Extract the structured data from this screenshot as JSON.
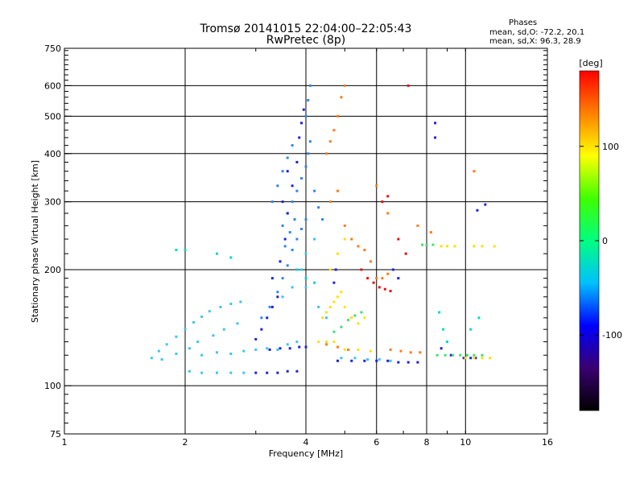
{
  "chart_data": {
    "type": "scatter",
    "title": "Tromsø 20141015 22:04:00–22:05:43",
    "subtitle": "RwPretec (8p)",
    "phase_info": {
      "heading": "Phases",
      "line1": "mean, sd,O: -72.2, 20.1",
      "line2": "mean, sd,X:  96.3, 28.9"
    },
    "xlabel": "Frequency [MHz]",
    "ylabel": "Stationary phase Virtual Height [km]",
    "x_scale": "log",
    "y_scale": "log",
    "xlim": [
      1,
      16
    ],
    "ylim": [
      75,
      750
    ],
    "x_ticks": [
      1,
      2,
      4,
      6,
      8,
      10,
      16
    ],
    "x_tick_labels": [
      "1",
      "2",
      "4",
      "6",
      "8",
      "10",
      "16"
    ],
    "y_ticks": [
      75,
      100,
      200,
      300,
      400,
      500,
      600,
      750
    ],
    "y_tick_labels": [
      "75",
      "100",
      "200",
      "300",
      "400",
      "500",
      "600",
      "750"
    ],
    "x_gridlines": [
      2,
      4,
      6,
      8,
      10
    ],
    "y_gridlines": [
      100,
      200,
      300,
      400,
      500,
      600
    ],
    "grid": true,
    "colorbar": {
      "label": "[deg]",
      "range": [
        -180,
        180
      ],
      "ticks": [
        100,
        0,
        -100
      ],
      "tick_labels": [
        "100",
        "0",
        "-100"
      ],
      "colormap": [
        "#000000",
        "#3a0070",
        "#0000ff",
        "#00c0ff",
        "#00ff80",
        "#40ff00",
        "#ffff00",
        "#ff8000",
        "#ff0000"
      ]
    },
    "series": [
      {
        "color": "#3fc4ee",
        "points": [
          [
            1.65,
            118
          ],
          [
            1.72,
            123
          ],
          [
            1.8,
            128
          ],
          [
            1.9,
            134
          ],
          [
            2.0,
            140
          ],
          [
            2.1,
            146
          ],
          [
            2.2,
            151
          ],
          [
            2.3,
            156
          ],
          [
            2.45,
            160
          ],
          [
            2.6,
            163
          ],
          [
            2.75,
            165
          ],
          [
            2.2,
            120
          ],
          [
            2.4,
            122
          ],
          [
            2.6,
            121
          ],
          [
            2.8,
            123
          ],
          [
            1.75,
            117
          ],
          [
            1.9,
            121
          ],
          [
            2.05,
            125
          ],
          [
            2.15,
            130
          ],
          [
            2.35,
            135
          ],
          [
            2.5,
            140
          ],
          [
            2.7,
            145
          ],
          [
            3.0,
            124
          ],
          [
            3.2,
            125
          ],
          [
            3.4,
            124
          ],
          [
            3.6,
            128
          ],
          [
            3.8,
            130
          ],
          [
            2.05,
            109
          ],
          [
            2.2,
            108
          ],
          [
            2.4,
            108
          ],
          [
            2.6,
            108
          ],
          [
            2.8,
            108
          ],
          [
            3.5,
            170
          ],
          [
            3.7,
            180
          ],
          [
            3.9,
            200
          ],
          [
            4.0,
            220
          ],
          [
            4.2,
            240
          ],
          [
            4.0,
            180
          ],
          [
            4.3,
            160
          ],
          [
            4.5,
            150
          ],
          [
            4.9,
            118
          ],
          [
            5.3,
            118
          ],
          [
            5.7,
            117
          ],
          [
            6.1,
            117
          ],
          [
            6.5,
            116
          ]
        ]
      },
      {
        "color": "#2f86ec",
        "points": [
          [
            3.1,
            150
          ],
          [
            3.25,
            160
          ],
          [
            3.4,
            175
          ],
          [
            3.5,
            190
          ],
          [
            3.6,
            205
          ],
          [
            3.7,
            225
          ],
          [
            3.8,
            240
          ],
          [
            3.9,
            255
          ],
          [
            4.0,
            270
          ],
          [
            3.5,
            260
          ],
          [
            3.6,
            280
          ],
          [
            3.7,
            300
          ],
          [
            3.8,
            320
          ],
          [
            3.9,
            345
          ],
          [
            4.0,
            370
          ],
          [
            4.05,
            400
          ],
          [
            4.1,
            430
          ],
          [
            3.3,
            300
          ],
          [
            3.4,
            330
          ],
          [
            3.5,
            360
          ],
          [
            3.6,
            390
          ],
          [
            3.7,
            420
          ],
          [
            3.55,
            230
          ],
          [
            3.65,
            250
          ],
          [
            3.75,
            270
          ],
          [
            4.0,
            500
          ],
          [
            4.05,
            550
          ],
          [
            4.1,
            600
          ],
          [
            4.2,
            320
          ],
          [
            4.3,
            290
          ],
          [
            4.4,
            270
          ]
        ]
      },
      {
        "color": "#1f22d8",
        "points": [
          [
            3.0,
            132
          ],
          [
            3.1,
            140
          ],
          [
            3.2,
            150
          ],
          [
            3.3,
            160
          ],
          [
            3.4,
            170
          ],
          [
            3.0,
            108
          ],
          [
            3.2,
            108
          ],
          [
            3.4,
            108
          ],
          [
            3.6,
            109
          ],
          [
            3.8,
            109
          ],
          [
            3.25,
            124
          ],
          [
            3.45,
            125
          ],
          [
            3.65,
            125
          ],
          [
            3.85,
            126
          ],
          [
            4.0,
            126
          ],
          [
            3.3,
            190
          ],
          [
            3.45,
            210
          ],
          [
            3.55,
            240
          ],
          [
            3.6,
            280
          ],
          [
            3.7,
            330
          ],
          [
            3.8,
            380
          ],
          [
            3.85,
            440
          ],
          [
            3.9,
            480
          ],
          [
            3.95,
            520
          ],
          [
            3.6,
            360
          ],
          [
            3.5,
            300
          ],
          [
            4.8,
            116
          ],
          [
            5.2,
            116
          ],
          [
            5.6,
            116
          ],
          [
            6.0,
            116
          ],
          [
            6.4,
            116
          ],
          [
            6.8,
            115
          ],
          [
            7.2,
            115
          ],
          [
            7.6,
            115
          ],
          [
            4.7,
            185
          ],
          [
            4.75,
            200
          ],
          [
            6.6,
            200
          ],
          [
            6.8,
            190
          ],
          [
            8.4,
            480
          ],
          [
            8.4,
            440
          ],
          [
            10.7,
            285
          ],
          [
            11.2,
            295
          ],
          [
            8.7,
            125
          ],
          [
            9.2,
            120
          ],
          [
            9.9,
            118
          ],
          [
            10.3,
            118
          ],
          [
            10.6,
            118
          ]
        ]
      },
      {
        "color": "#ffe000",
        "points": [
          [
            4.4,
            150
          ],
          [
            4.5,
            155
          ],
          [
            4.6,
            160
          ],
          [
            4.7,
            165
          ],
          [
            4.8,
            170
          ],
          [
            4.9,
            175
          ],
          [
            5.0,
            160
          ],
          [
            5.2,
            150
          ],
          [
            5.4,
            145
          ],
          [
            5.6,
            150
          ],
          [
            4.6,
            200
          ],
          [
            4.8,
            220
          ],
          [
            5.0,
            240
          ],
          [
            4.3,
            130
          ],
          [
            4.5,
            130
          ],
          [
            4.7,
            130
          ],
          [
            5.0,
            124
          ],
          [
            5.4,
            124
          ],
          [
            5.8,
            123
          ],
          [
            8.7,
            230
          ],
          [
            9.0,
            230
          ],
          [
            9.4,
            230
          ],
          [
            10.5,
            230
          ],
          [
            11.0,
            230
          ],
          [
            11.8,
            230
          ],
          [
            10.0,
            118
          ],
          [
            10.5,
            118
          ],
          [
            11.0,
            118
          ],
          [
            11.5,
            118
          ]
        ]
      },
      {
        "color": "#40e070",
        "points": [
          [
            4.7,
            138
          ],
          [
            4.9,
            142
          ],
          [
            5.1,
            148
          ],
          [
            5.3,
            152
          ],
          [
            5.5,
            155
          ],
          [
            8.5,
            120
          ],
          [
            8.9,
            120
          ],
          [
            9.3,
            120
          ],
          [
            9.7,
            120
          ],
          [
            10.1,
            120
          ],
          [
            10.5,
            120
          ],
          [
            11.0,
            120
          ],
          [
            7.8,
            232
          ],
          [
            8.0,
            232
          ],
          [
            8.3,
            232
          ]
        ]
      },
      {
        "color": "#ff7a1a",
        "points": [
          [
            4.5,
            400
          ],
          [
            4.6,
            430
          ],
          [
            4.7,
            460
          ],
          [
            4.8,
            500
          ],
          [
            4.9,
            560
          ],
          [
            5.0,
            600
          ],
          [
            4.6,
            300
          ],
          [
            4.8,
            320
          ],
          [
            5.0,
            260
          ],
          [
            5.2,
            240
          ],
          [
            5.4,
            230
          ],
          [
            5.6,
            225
          ],
          [
            5.8,
            210
          ],
          [
            6.0,
            190
          ],
          [
            6.2,
            190
          ],
          [
            6.4,
            195
          ],
          [
            6.0,
            330
          ],
          [
            6.2,
            300
          ],
          [
            6.4,
            280
          ],
          [
            4.5,
            128
          ],
          [
            4.8,
            126
          ],
          [
            5.1,
            124
          ],
          [
            6.5,
            124
          ],
          [
            6.9,
            123
          ],
          [
            7.3,
            122
          ],
          [
            7.7,
            122
          ],
          [
            7.6,
            260
          ],
          [
            8.2,
            250
          ],
          [
            10.5,
            360
          ]
        ]
      },
      {
        "color": "#e81010",
        "points": [
          [
            5.5,
            200
          ],
          [
            5.7,
            190
          ],
          [
            5.9,
            185
          ],
          [
            6.1,
            180
          ],
          [
            6.3,
            178
          ],
          [
            6.5,
            176
          ],
          [
            6.2,
            300
          ],
          [
            6.4,
            310
          ],
          [
            7.2,
            600
          ],
          [
            6.8,
            240
          ],
          [
            7.1,
            220
          ]
        ]
      },
      {
        "color": "#00d8c8",
        "points": [
          [
            1.9,
            225
          ],
          [
            2.0,
            225
          ],
          [
            2.4,
            220
          ],
          [
            2.6,
            215
          ],
          [
            3.8,
            200
          ],
          [
            4.0,
            190
          ],
          [
            4.2,
            185
          ],
          [
            8.6,
            155
          ],
          [
            8.8,
            140
          ],
          [
            9.0,
            130
          ],
          [
            10.3,
            140
          ],
          [
            10.8,
            150
          ]
        ]
      }
    ]
  }
}
